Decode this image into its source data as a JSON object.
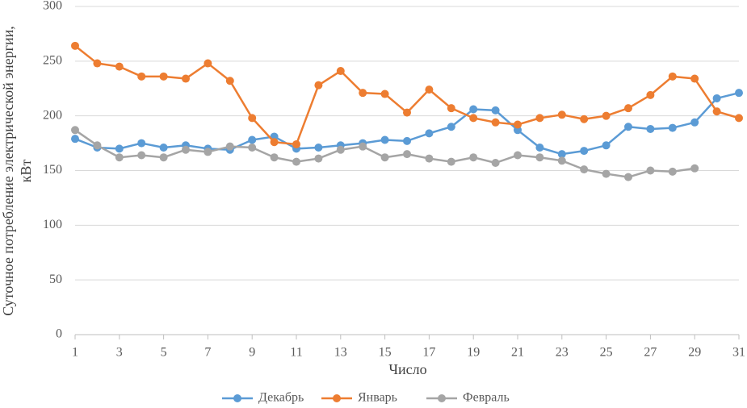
{
  "chart_data": {
    "type": "line",
    "xlabel": "Число",
    "ylabel": [
      "Суточное потребление электрической энергии,",
      "кВт"
    ],
    "x": [
      1,
      2,
      3,
      4,
      5,
      6,
      7,
      8,
      9,
      10,
      11,
      12,
      13,
      14,
      15,
      16,
      17,
      18,
      19,
      20,
      21,
      22,
      23,
      24,
      25,
      26,
      27,
      28,
      29,
      30,
      31
    ],
    "xlim": [
      1,
      31
    ],
    "xticks": [
      1,
      3,
      5,
      7,
      9,
      11,
      13,
      15,
      17,
      19,
      21,
      23,
      25,
      27,
      29,
      31
    ],
    "ylim": [
      0,
      300
    ],
    "yticks": [
      0,
      50,
      100,
      150,
      200,
      250,
      300
    ],
    "grid": true,
    "legend": "bottom",
    "series": [
      {
        "name": "Декабрь",
        "color": "#5b9bd5",
        "values": [
          179,
          171,
          170,
          175,
          171,
          173,
          170,
          169,
          178,
          181,
          170,
          171,
          173,
          175,
          178,
          177,
          184,
          190,
          206,
          205,
          187,
          171,
          165,
          168,
          173,
          190,
          188,
          189,
          194,
          216,
          221
        ]
      },
      {
        "name": "Январь",
        "color": "#ed7d31",
        "values": [
          264,
          248,
          245,
          236,
          236,
          234,
          248,
          232,
          198,
          176,
          174,
          228,
          241,
          221,
          220,
          203,
          224,
          207,
          198,
          194,
          192,
          198,
          201,
          197,
          200,
          207,
          219,
          236,
          234,
          204,
          198
        ]
      },
      {
        "name": "Февраль",
        "color": "#a5a5a5",
        "values": [
          187,
          173,
          162,
          164,
          162,
          169,
          167,
          172,
          171,
          162,
          158,
          161,
          169,
          172,
          162,
          165,
          161,
          158,
          162,
          157,
          164,
          162,
          159,
          151,
          147,
          144,
          150,
          149,
          152,
          null,
          null
        ]
      }
    ]
  }
}
